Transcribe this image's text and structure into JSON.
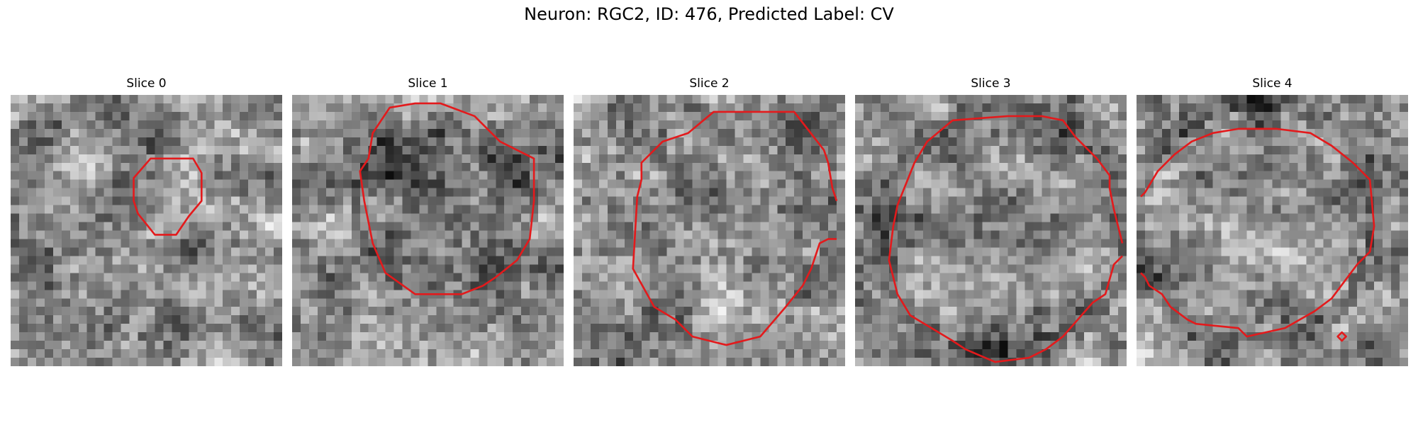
{
  "figure": {
    "title": "Neuron: RGC2, ID: 476, Predicted Label: CV"
  },
  "colors": {
    "contour": "#e31a1c",
    "background": "#ffffff",
    "colormap": "grayscale"
  },
  "panels": [
    {
      "title": "Slice 0"
    },
    {
      "title": "Slice 1"
    },
    {
      "title": "Slice 2"
    },
    {
      "title": "Slice 3"
    },
    {
      "title": "Slice 4"
    }
  ]
}
